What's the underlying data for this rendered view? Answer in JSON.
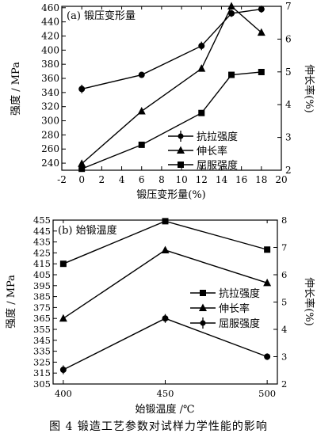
{
  "figure_caption": "图 4  锻造工艺参数对试样力学性能的影响",
  "chart_data": [
    {
      "type": "line",
      "panel_label": "(a) 锻压变形量",
      "xlabel": "锻压变形量(%)",
      "ylabel_left": "强度 / MPa",
      "ylabel_right": "伸长率(%)",
      "xlim": [
        -2,
        20
      ],
      "ylim_left": [
        230,
        462
      ],
      "ylim_right": [
        2,
        7
      ],
      "x_ticks": [
        -2,
        0,
        2,
        4,
        6,
        8,
        10,
        12,
        14,
        16,
        18,
        20
      ],
      "y_left_ticks": [
        240,
        260,
        280,
        300,
        320,
        340,
        360,
        380,
        400,
        420,
        440,
        460
      ],
      "y_right_ticks": [
        2,
        3,
        4,
        5,
        6,
        7
      ],
      "legend_position": "right-middle",
      "series": [
        {
          "name": "抗拉强度",
          "marker": "cross",
          "axis": "left",
          "x": [
            0,
            6,
            12,
            15,
            18
          ],
          "values": [
            345,
            365,
            406,
            452,
            458
          ],
          "error": [
            6,
            4,
            6,
            5,
            5
          ]
        },
        {
          "name": "伸长率",
          "marker": "triangle",
          "axis": "right",
          "x": [
            0,
            6,
            12,
            15,
            18
          ],
          "values": [
            2.2,
            3.8,
            5.1,
            7.0,
            6.2
          ]
        },
        {
          "name": "屈服强度",
          "marker": "square",
          "axis": "left",
          "x": [
            0,
            6,
            12,
            15,
            18
          ],
          "values": [
            232,
            266,
            311,
            365,
            369
          ]
        }
      ]
    },
    {
      "type": "line",
      "panel_label": "(b) 始锻温度",
      "xlabel": "始锻温度 /℃",
      "ylabel_left": "强度 / MPa",
      "ylabel_right": "伸长率(%)",
      "xlim": [
        395,
        505
      ],
      "ylim_left": [
        305,
        455
      ],
      "ylim_right": [
        2,
        8
      ],
      "x_ticks": [
        400,
        450,
        500
      ],
      "y_left_ticks": [
        305,
        315,
        325,
        335,
        345,
        355,
        365,
        375,
        385,
        395,
        405,
        415,
        425,
        435,
        445,
        455
      ],
      "y_right_ticks": [
        2,
        3,
        4,
        5,
        6,
        7,
        8
      ],
      "legend_position": "right-middle",
      "series": [
        {
          "name": "抗拉强度",
          "marker": "square",
          "axis": "left",
          "x": [
            400,
            450,
            500
          ],
          "values": [
            415,
            454,
            428
          ]
        },
        {
          "name": "伸长率",
          "marker": "triangle",
          "axis": "right",
          "x": [
            400,
            450,
            500
          ],
          "values": [
            4.4,
            6.9,
            5.7
          ]
        },
        {
          "name": "屈服强度",
          "marker": "cross",
          "axis": "left",
          "x": [
            400,
            450,
            500
          ],
          "values": [
            318,
            365,
            330
          ],
          "error": [
            4,
            4,
            3
          ]
        }
      ]
    }
  ]
}
